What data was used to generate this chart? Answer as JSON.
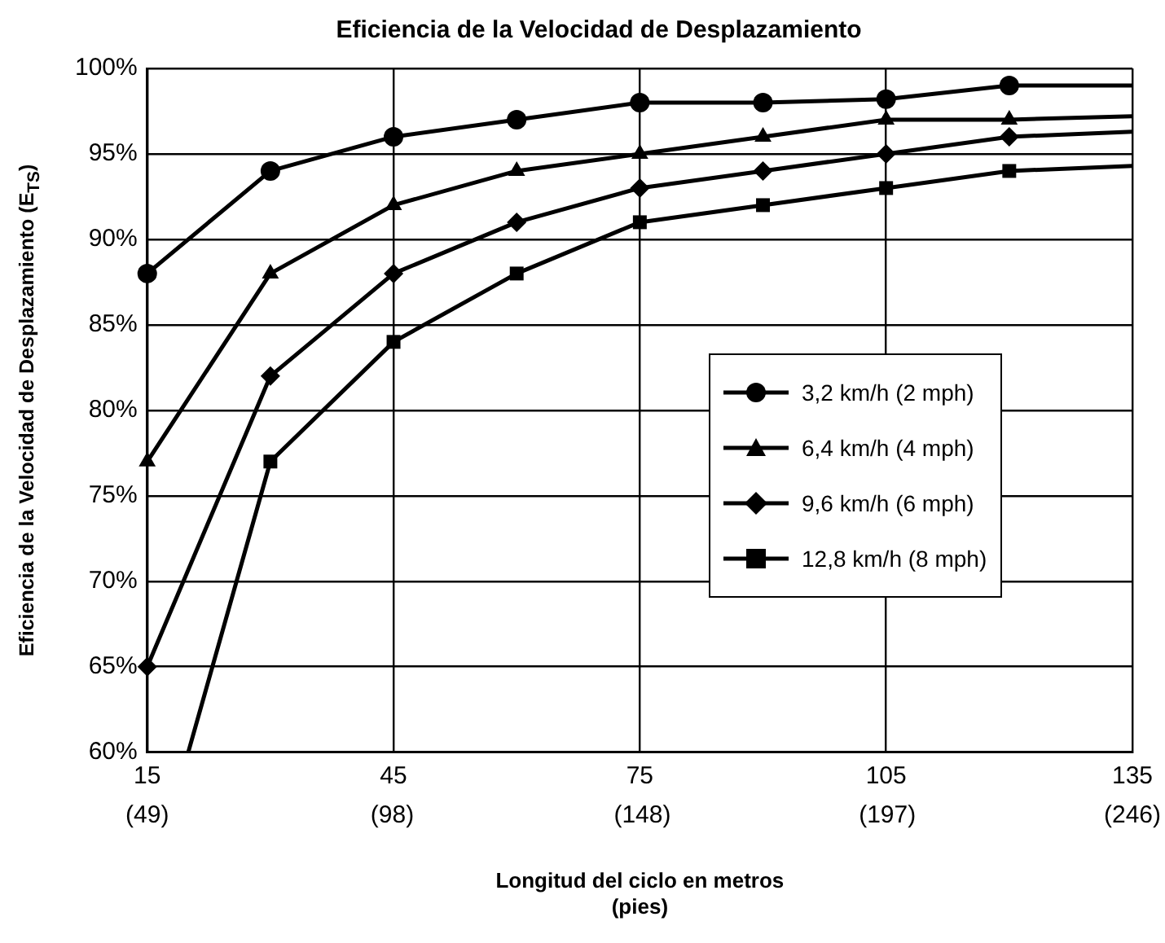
{
  "chart_data": {
    "type": "line",
    "title": "Eficiencia de la Velocidad de Desplazamiento",
    "xlabel": "Longitud del ciclo en metros",
    "ylabel": "Eficiencia de la Velocidad de Desplazamiento (E$_{TS}$)",
    "x": [
      15,
      30,
      45,
      60,
      75,
      90,
      105,
      120,
      135
    ],
    "series": [
      {
        "name": "3,2 km/h (2 mph)",
        "color": "#000000",
        "marker": "circle",
        "values": [
          88,
          94,
          96,
          97,
          98,
          98,
          98.2,
          99,
          99
        ]
      },
      {
        "name": "6,4 km/h (4 mph)",
        "color": "#000000",
        "marker": "triangle",
        "values": [
          77,
          88,
          92,
          94,
          95,
          96,
          97,
          97,
          97.2
        ]
      },
      {
        "name": "9,6 km/h (6 mph)",
        "color": "#000000",
        "marker": "diamond",
        "values": [
          65,
          82,
          88,
          91,
          93,
          94,
          95,
          96,
          96.3
        ]
      },
      {
        "name": "12,8 km/h (8 mph)",
        "color": "#000000",
        "marker": "square",
        "x": [
          20,
          30,
          45,
          60,
          75,
          90,
          105,
          120,
          135
        ],
        "values": [
          60,
          77,
          84,
          88,
          91,
          92,
          93,
          94,
          94.3
        ]
      }
    ],
    "xlim": [
      15,
      135
    ],
    "xticks": [
      15,
      45,
      75,
      105,
      135
    ],
    "x2lim": [
      49,
      246
    ],
    "x2ticks": [
      {
        "value": 49,
        "label": "(49)"
      },
      {
        "value": 98,
        "label": "(98)"
      },
      {
        "value": 148,
        "label": "(148)"
      },
      {
        "value": 197,
        "label": "(197)"
      },
      {
        "value": 246,
        "label": "(246)"
      }
    ],
    "x2label": "(pies)",
    "ylim": [
      60,
      100
    ],
    "yticks": [
      {
        "value": 60,
        "label": "60%"
      },
      {
        "value": 65,
        "label": "65%"
      },
      {
        "value": 70,
        "label": "70%"
      },
      {
        "value": 75,
        "label": "75%"
      },
      {
        "value": 80,
        "label": "80%"
      },
      {
        "value": 85,
        "label": "85%"
      },
      {
        "value": 90,
        "label": "90%"
      },
      {
        "value": 95,
        "label": "95%"
      },
      {
        "value": 100,
        "label": "100%"
      }
    ],
    "grid": true,
    "legend": "right",
    "line_style": "solid"
  }
}
